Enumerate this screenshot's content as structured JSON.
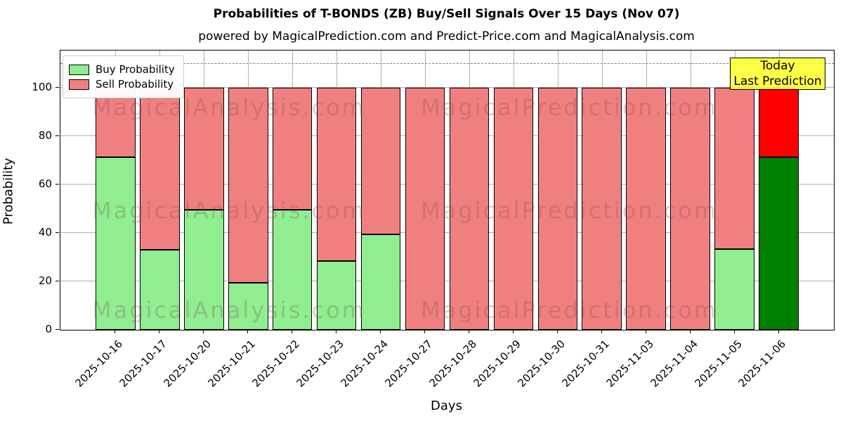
{
  "title": "Probabilities of T-BONDS (ZB) Buy/Sell Signals Over 15 Days (Nov 07)",
  "subtitle": "powered by MagicalPrediction.com and Predict-Price.com and MagicalAnalysis.com",
  "legend": {
    "items": [
      {
        "label": "Buy Probability",
        "color": "#90EE90"
      },
      {
        "label": "Sell Probability",
        "color": "#F08080"
      }
    ]
  },
  "annotation": {
    "line1": "Today",
    "line2": "Last Prediction",
    "bg_color": "#FFFF33"
  },
  "watermarks": {
    "left": "MagicalAnalysis.com",
    "right": "MagicalPrediction.com"
  },
  "chart_data": {
    "type": "bar",
    "stacked": true,
    "title": "Probabilities of T-BONDS (ZB) Buy/Sell Signals Over 15 Days (Nov 07)",
    "xlabel": "Days",
    "ylabel": "Probability",
    "categories": [
      "2025-10-16",
      "2025-10-17",
      "2025-10-20",
      "2025-10-21",
      "2025-10-22",
      "2025-10-23",
      "2025-10-24",
      "2025-10-27",
      "2025-10-28",
      "2025-10-29",
      "2025-10-30",
      "2025-10-31",
      "2025-11-03",
      "2025-11-04",
      "2025-11-05",
      "2025-11-06"
    ],
    "series": [
      {
        "name": "Buy Probability",
        "color": "#90EE90",
        "today_color": "#008000",
        "values": [
          71.5,
          33,
          49.5,
          19.5,
          49.5,
          28.5,
          39.5,
          0,
          0,
          0,
          0,
          0,
          0,
          0,
          33.5,
          71.5
        ]
      },
      {
        "name": "Sell Probability",
        "color": "#F08080",
        "today_color": "#FF0000",
        "values": [
          28.5,
          67,
          50.5,
          80.5,
          50.5,
          71.5,
          60.5,
          100,
          100,
          100,
          100,
          100,
          100,
          100,
          66.5,
          28.5
        ]
      }
    ],
    "today_index": 15,
    "ylim": [
      0,
      115.5
    ],
    "yticks": [
      0,
      20,
      40,
      60,
      80,
      100
    ],
    "dashed_line_y": 110,
    "grid": true,
    "legend_position": "upper left"
  }
}
